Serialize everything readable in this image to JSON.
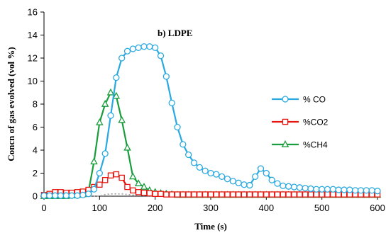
{
  "chart_data": {
    "type": "line",
    "title": "",
    "annotation": "b) LDPE",
    "xlabel": "Time (s)",
    "ylabel": "Concn of gas evolved (vol %)",
    "xlim": [
      0,
      600
    ],
    "ylim": [
      0,
      16
    ],
    "xticks": [
      "0",
      "100",
      "200",
      "300",
      "400",
      "500",
      "600"
    ],
    "yticks": [
      "0",
      "2",
      "4",
      "6",
      "8",
      "10",
      "12",
      "14",
      "16"
    ],
    "grid": false,
    "legend_position": "right",
    "series": [
      {
        "name": "% CO",
        "color": "#29a9e0",
        "marker": "circle",
        "x": [
          0,
          10,
          20,
          30,
          40,
          50,
          60,
          70,
          80,
          90,
          100,
          110,
          120,
          130,
          140,
          150,
          160,
          170,
          180,
          190,
          200,
          210,
          220,
          230,
          240,
          250,
          260,
          270,
          280,
          290,
          300,
          310,
          320,
          330,
          340,
          350,
          360,
          370,
          380,
          390,
          400,
          410,
          420,
          430,
          440,
          450,
          460,
          470,
          480,
          490,
          500,
          510,
          520,
          530,
          540,
          550,
          560,
          570,
          580,
          590,
          600
        ],
        "y": [
          0.05,
          0.05,
          0.05,
          0.05,
          0.05,
          0.05,
          0.05,
          0.1,
          0.2,
          0.6,
          2.0,
          3.7,
          7.0,
          10.3,
          12.0,
          12.6,
          12.8,
          12.9,
          13.0,
          13.0,
          12.9,
          12.2,
          10.4,
          8.1,
          6.0,
          4.5,
          3.6,
          2.9,
          2.5,
          2.2,
          2.0,
          1.9,
          1.7,
          1.5,
          1.3,
          1.15,
          1.0,
          0.95,
          1.7,
          2.4,
          2.0,
          1.4,
          1.1,
          0.9,
          0.85,
          0.8,
          0.75,
          0.7,
          0.65,
          0.6,
          0.6,
          0.6,
          0.6,
          0.55,
          0.55,
          0.55,
          0.5,
          0.5,
          0.5,
          0.5,
          0.45
        ]
      },
      {
        "name": "%CO2",
        "color": "#e8140e",
        "marker": "square",
        "x": [
          0,
          10,
          20,
          30,
          40,
          50,
          60,
          70,
          80,
          90,
          100,
          110,
          120,
          130,
          140,
          150,
          160,
          170,
          180,
          190,
          200,
          210,
          220,
          230,
          240,
          250,
          260,
          270,
          280,
          290,
          300,
          310,
          320,
          330,
          340,
          350,
          360,
          370,
          380,
          390,
          400,
          410,
          420,
          430,
          440,
          450,
          460,
          470,
          480,
          490,
          500,
          510,
          520,
          530,
          540,
          550,
          560,
          570,
          580,
          590,
          600
        ],
        "y": [
          0.1,
          0.2,
          0.35,
          0.35,
          0.3,
          0.3,
          0.35,
          0.4,
          0.55,
          0.8,
          1.0,
          1.4,
          1.8,
          1.9,
          1.6,
          0.8,
          0.5,
          0.35,
          0.3,
          0.25,
          0.2,
          0.2,
          0.15,
          0.15,
          0.15,
          0.15,
          0.15,
          0.15,
          0.15,
          0.15,
          0.15,
          0.15,
          0.15,
          0.15,
          0.15,
          0.15,
          0.15,
          0.15,
          0.15,
          0.15,
          0.15,
          0.15,
          0.15,
          0.15,
          0.15,
          0.15,
          0.15,
          0.15,
          0.15,
          0.15,
          0.15,
          0.15,
          0.15,
          0.15,
          0.15,
          0.15,
          0.15,
          0.15,
          0.15,
          0.15,
          0.15
        ]
      },
      {
        "name": "%CH4",
        "color": "#1a9d3c",
        "marker": "triangle",
        "x": [
          0,
          10,
          20,
          30,
          40,
          50,
          60,
          70,
          80,
          90,
          100,
          110,
          120,
          130,
          140,
          150,
          160,
          170,
          180,
          190,
          200,
          210,
          220,
          230,
          240,
          250,
          260,
          270,
          280,
          290,
          300,
          310,
          320,
          330,
          340,
          350,
          360,
          370,
          380,
          390,
          400,
          410,
          420,
          430,
          440,
          450,
          460,
          470,
          480,
          490,
          500,
          510,
          520,
          530,
          540,
          550,
          560,
          570,
          580,
          590,
          600
        ],
        "y": [
          0.0,
          0.0,
          0.0,
          0.0,
          0.0,
          0.05,
          0.1,
          0.15,
          0.4,
          3.0,
          6.4,
          8.0,
          9.0,
          8.7,
          6.6,
          4.2,
          1.7,
          1.1,
          0.8,
          0.5,
          0.35,
          0.25,
          0.2,
          0.15,
          0.1,
          0.1,
          0.1,
          0.1,
          0.1,
          0.1,
          0.1,
          0.1,
          0.1,
          0.1,
          0.1,
          0.1,
          0.1,
          0.1,
          0.1,
          0.1,
          0.1,
          0.1,
          0.1,
          0.1,
          0.1,
          0.1,
          0.1,
          0.1,
          0.1,
          0.1,
          0.1,
          0.1,
          0.1,
          0.1,
          0.1,
          0.1,
          0.1,
          0.1,
          0.1,
          0.1,
          0.1
        ]
      },
      {
        "color": "#9b9b9b",
        "marker": "none",
        "style": "dotted",
        "x": [
          0,
          100,
          110,
          120,
          130,
          140,
          150,
          160,
          170,
          180,
          190,
          200,
          210,
          220,
          230,
          240,
          250,
          260,
          270,
          280,
          290,
          300,
          600
        ],
        "y": [
          0.0,
          0.0,
          0.15,
          0.2,
          0.2,
          0.2,
          0.15,
          0.1,
          0.05,
          0.05,
          0.05,
          0.0,
          0.0,
          0.0,
          0.0,
          0.0,
          0.0,
          0.0,
          0.0,
          0.0,
          0.0,
          0.0,
          0.0
        ]
      }
    ]
  }
}
